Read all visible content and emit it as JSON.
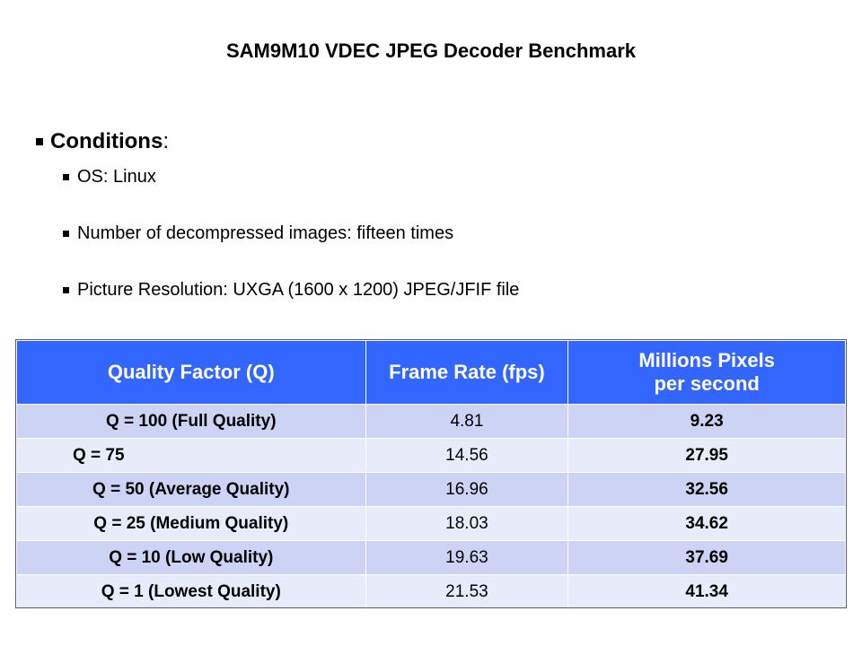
{
  "slide": {
    "title": "SAM9M10 VDEC JPEG Decoder Benchmark",
    "conditions_heading": "Conditions",
    "conditions_colon": ":",
    "conditions": [
      "OS: Linux",
      "Number of decompressed images: fifteen times",
      "Picture Resolution: UXGA (1600 x 1200) JPEG/JFIF file"
    ]
  },
  "table": {
    "headers": [
      "Quality Factor  (Q)",
      "Frame Rate (fps)",
      "Millions Pixels",
      "per second"
    ],
    "rows": [
      {
        "q": "Q = 100 (Full Quality)",
        "fps": "4.81",
        "mps": "9.23"
      },
      {
        "q": "Q = 75",
        "fps": "14.56",
        "mps": "27.95"
      },
      {
        "q": "Q = 50 (Average Quality)",
        "fps": "16.96",
        "mps": "32.56"
      },
      {
        "q": "Q = 25 (Medium Quality)",
        "fps": "18.03",
        "mps": "34.62"
      },
      {
        "q": "Q = 10 (Low Quality)",
        "fps": "19.63",
        "mps": "37.69"
      },
      {
        "q": "Q = 1 (Lowest Quality)",
        "fps": "21.53",
        "mps": "41.34"
      }
    ]
  },
  "colors": {
    "header_bg": "#3366ff",
    "row_dark": "#cdd3f5",
    "row_light": "#e8ebfa"
  }
}
